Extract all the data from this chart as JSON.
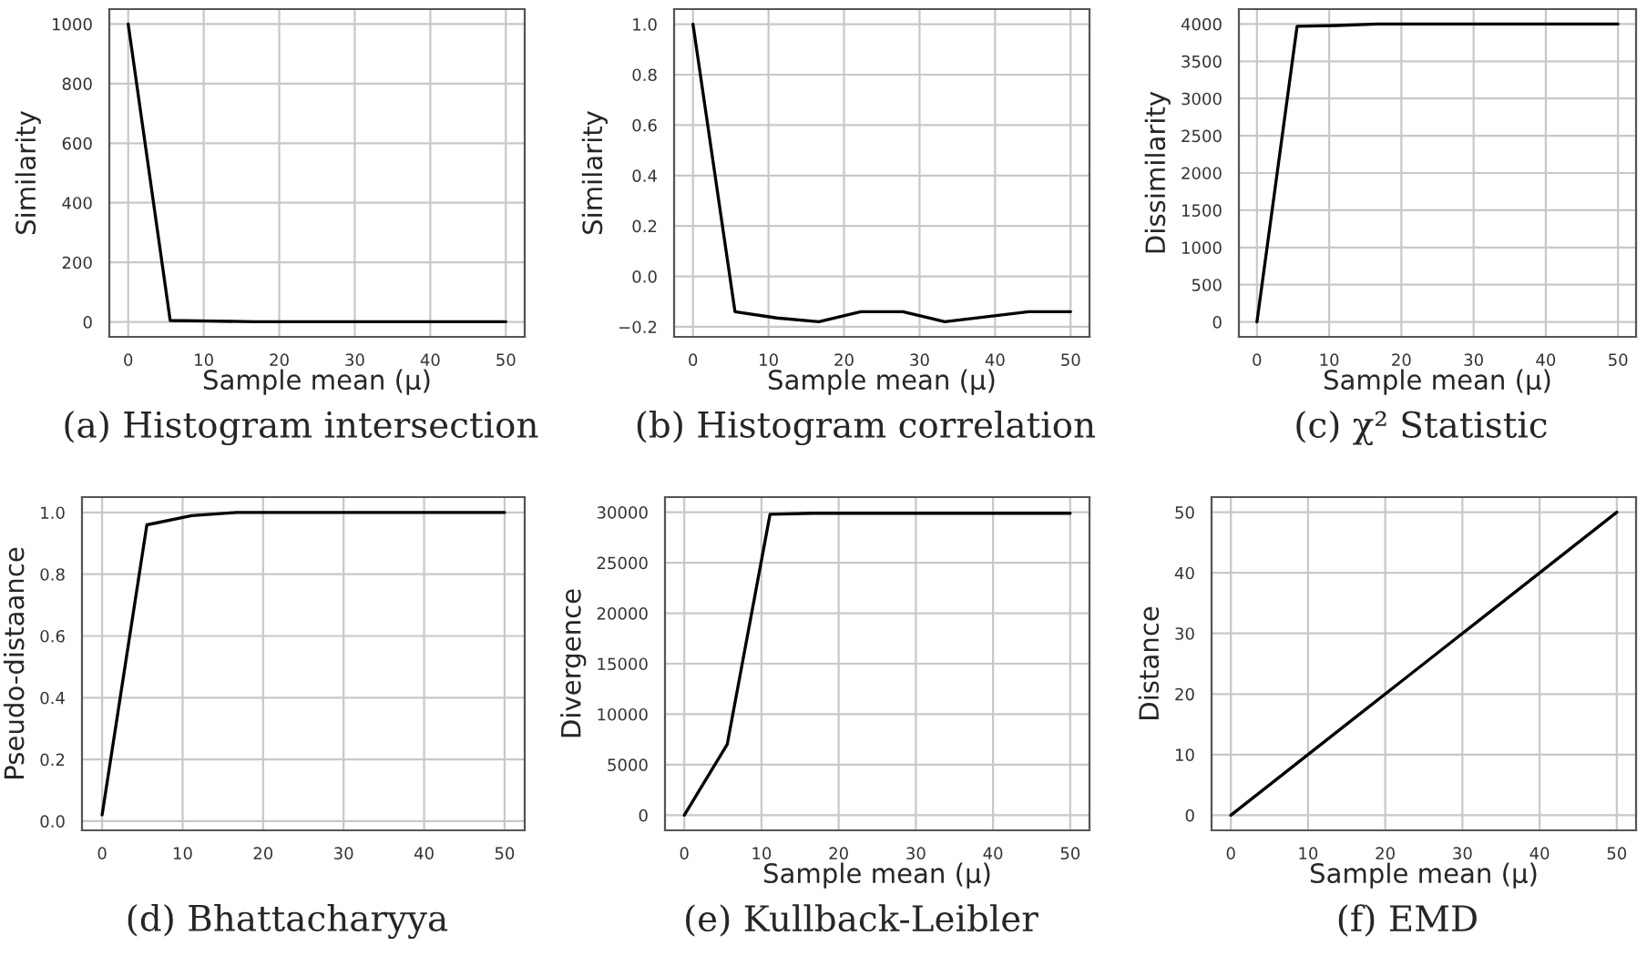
{
  "chart_data": [
    {
      "type": "line",
      "ylabel": "Similarity",
      "xlabel": "Sample mean (μ)",
      "annotations": [
        "(a) Histogram intersection"
      ],
      "x": [
        0,
        5.56,
        11.11,
        16.67,
        22.22,
        27.78,
        33.33,
        38.89,
        44.44,
        50
      ],
      "series": [
        {
          "color": "#000000",
          "values": [
            1000,
            5,
            3,
            1,
            1,
            1,
            1,
            1,
            1,
            1
          ]
        }
      ],
      "xlim": [
        -2.5,
        52.5
      ],
      "xticks": [
        0,
        10,
        20,
        30,
        40,
        50
      ],
      "ylim": [
        -50,
        1050
      ],
      "yticks": [
        0,
        200,
        400,
        600,
        800,
        1000
      ],
      "grid": true
    },
    {
      "type": "line",
      "ylabel": "Similarity",
      "xlabel": "Sample mean (μ)",
      "annotations": [
        "(b) Histogram correlation"
      ],
      "x": [
        0,
        5.56,
        11.11,
        16.67,
        22.22,
        27.78,
        33.33,
        38.89,
        44.44,
        50
      ],
      "series": [
        {
          "color": "#000000",
          "values": [
            1.0,
            -0.14,
            -0.165,
            -0.18,
            -0.14,
            -0.14,
            -0.18,
            -0.16,
            -0.14,
            -0.14
          ]
        }
      ],
      "xlim": [
        -2.5,
        52.5
      ],
      "xticks": [
        0,
        10,
        20,
        30,
        40,
        50
      ],
      "ylim": [
        -0.24,
        1.06
      ],
      "yticks": [
        {
          "value": -0.2,
          "label": "−0.2"
        },
        {
          "value": 0.0,
          "label": "0.0"
        },
        {
          "value": 0.2,
          "label": "0.2"
        },
        {
          "value": 0.4,
          "label": "0.4"
        },
        {
          "value": 0.6,
          "label": "0.6"
        },
        {
          "value": 0.8,
          "label": "0.8"
        },
        {
          "value": 1.0,
          "label": "1.0"
        }
      ],
      "grid": true
    },
    {
      "type": "line",
      "ylabel": "Dissimilarity",
      "xlabel": "Sample mean (μ)",
      "annotations": [
        "(c) χ² Statistic"
      ],
      "x": [
        0,
        5.56,
        11.11,
        16.67,
        22.22,
        27.78,
        33.33,
        38.89,
        44.44,
        50
      ],
      "series": [
        {
          "color": "#000000",
          "values": [
            0,
            3970,
            3980,
            4000,
            4000,
            4000,
            4000,
            4000,
            4000,
            4000
          ]
        }
      ],
      "xlim": [
        -2.5,
        52.5
      ],
      "xticks": [
        0,
        10,
        20,
        30,
        40,
        50
      ],
      "ylim": [
        -200,
        4200
      ],
      "yticks": [
        0,
        500,
        1000,
        1500,
        2000,
        2500,
        3000,
        3500,
        4000
      ],
      "grid": true
    },
    {
      "type": "line",
      "ylabel": "Pseudo-distaance",
      "annotations": [
        "(d) Bhattacharyya"
      ],
      "x": [
        0,
        5.56,
        11.11,
        16.67,
        22.22,
        27.78,
        33.33,
        38.89,
        44.44,
        50
      ],
      "series": [
        {
          "color": "#000000",
          "values": [
            0.02,
            0.96,
            0.99,
            1.0,
            1.0,
            1.0,
            1.0,
            1.0,
            1.0,
            1.0
          ]
        }
      ],
      "xlim": [
        -2.5,
        52.5
      ],
      "xticks": [
        0,
        10,
        20,
        30,
        40,
        50
      ],
      "ylim": [
        -0.03,
        1.05
      ],
      "yticks": [
        {
          "value": 0.0,
          "label": "0.0"
        },
        {
          "value": 0.2,
          "label": "0.2"
        },
        {
          "value": 0.4,
          "label": "0.4"
        },
        {
          "value": 0.6,
          "label": "0.6"
        },
        {
          "value": 0.8,
          "label": "0.8"
        },
        {
          "value": 1.0,
          "label": "1.0"
        }
      ],
      "grid": true
    },
    {
      "type": "line",
      "ylabel": "Divergence",
      "xlabel": "Sample mean (μ)",
      "annotations": [
        "(e) Kullback-Leibler"
      ],
      "x": [
        0,
        5.56,
        11.11,
        16.67,
        22.22,
        27.78,
        33.33,
        38.89,
        44.44,
        50
      ],
      "series": [
        {
          "color": "#000000",
          "values": [
            0,
            7000,
            29800,
            29900,
            29900,
            29900,
            29900,
            29900,
            29900,
            29900
          ]
        }
      ],
      "xlim": [
        -2.5,
        52.5
      ],
      "xticks": [
        0,
        10,
        20,
        30,
        40,
        50
      ],
      "ylim": [
        -1500,
        31500
      ],
      "yticks": [
        0,
        5000,
        10000,
        15000,
        20000,
        25000,
        30000
      ],
      "grid": true
    },
    {
      "type": "line",
      "ylabel": "Distance",
      "xlabel": "Sample mean (μ)",
      "annotations": [
        "(f) EMD"
      ],
      "x": [
        0,
        5.56,
        11.11,
        16.67,
        22.22,
        27.78,
        33.33,
        38.89,
        44.44,
        50
      ],
      "series": [
        {
          "color": "#000000",
          "values": [
            0,
            5.56,
            11.11,
            16.67,
            22.22,
            27.78,
            33.33,
            38.89,
            44.44,
            50
          ]
        }
      ],
      "xlim": [
        -2.5,
        52.5
      ],
      "xticks": [
        0,
        10,
        20,
        30,
        40,
        50
      ],
      "ylim": [
        -2.5,
        52.5
      ],
      "yticks": [
        0,
        10,
        20,
        30,
        40,
        50
      ],
      "grid": true
    }
  ]
}
